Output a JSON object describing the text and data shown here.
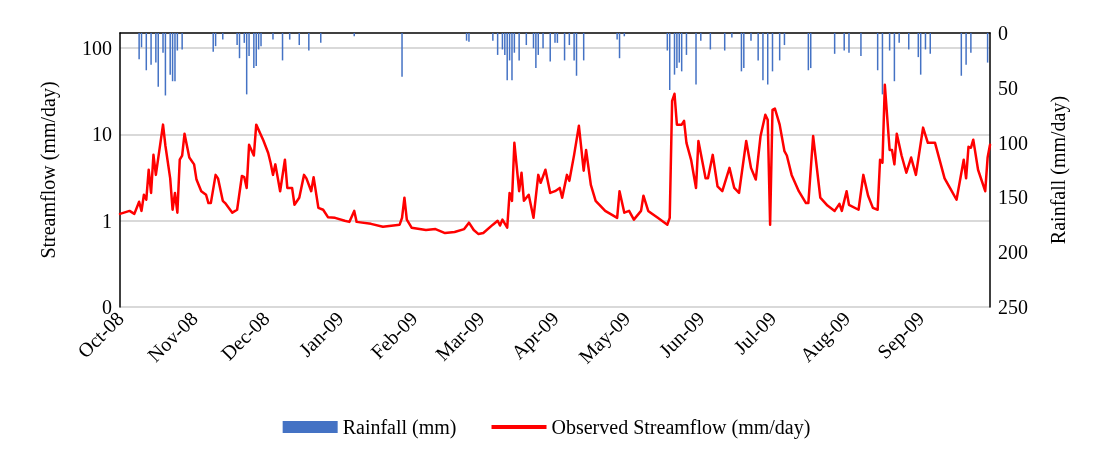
{
  "chart_data": {
    "type": "line",
    "xlim": [
      "2008-10-01",
      "2009-09-30"
    ],
    "xticks": [
      {
        "value": "2008-10-01",
        "label": "Oct-08"
      },
      {
        "value": "2008-11-01",
        "label": "Nov-08"
      },
      {
        "value": "2008-12-01",
        "label": "Dec-08"
      },
      {
        "value": "2009-01-01",
        "label": "Jan-09"
      },
      {
        "value": "2009-02-01",
        "label": "Feb-09"
      },
      {
        "value": "2009-03-01",
        "label": "Mar-09"
      },
      {
        "value": "2009-04-01",
        "label": "Apr-09"
      },
      {
        "value": "2009-05-01",
        "label": "May-09"
      },
      {
        "value": "2009-06-01",
        "label": "Jun-09"
      },
      {
        "value": "2009-07-01",
        "label": "Jul-09"
      },
      {
        "value": "2009-08-01",
        "label": "Aug-09"
      },
      {
        "value": "2009-09-01",
        "label": "Sep-09"
      }
    ],
    "ylabel": "Streamflow (mm/day)",
    "y2label": "Rainfall (mm/day)",
    "log": "y",
    "ylim": [
      0.1,
      150
    ],
    "yticks": [
      {
        "value": 0.1,
        "label": "0"
      },
      1,
      10,
      100
    ],
    "y2lim": [
      250,
      0
    ],
    "y2ticks": [
      0,
      50,
      100,
      150,
      200,
      250
    ],
    "grid": "y",
    "legend": "bottom",
    "marker": "none",
    "series": [
      {
        "name": "Rainfall (mm)",
        "type": "bar",
        "axis": "y2",
        "color": "#4472c4",
        "x": [
          "2008-10-09",
          "2008-10-10",
          "2008-10-12",
          "2008-10-14",
          "2008-10-16",
          "2008-10-17",
          "2008-10-19",
          "2008-10-20",
          "2008-10-22",
          "2008-10-23",
          "2008-10-24",
          "2008-10-25",
          "2008-10-27",
          "2008-11-09",
          "2008-11-10",
          "2008-11-13",
          "2008-11-19",
          "2008-11-20",
          "2008-11-22",
          "2008-11-23",
          "2008-11-24",
          "2008-11-26",
          "2008-11-27",
          "2008-11-28",
          "2008-11-29",
          "2008-12-04",
          "2008-12-08",
          "2008-12-11",
          "2008-12-15",
          "2008-12-19",
          "2008-12-24",
          "2009-01-07",
          "2009-01-27",
          "2009-02-23",
          "2009-02-24",
          "2009-03-06",
          "2009-03-08",
          "2009-03-10",
          "2009-03-11",
          "2009-03-12",
          "2009-03-13",
          "2009-03-14",
          "2009-03-15",
          "2009-03-17",
          "2009-03-20",
          "2009-03-23",
          "2009-03-24",
          "2009-03-25",
          "2009-03-27",
          "2009-03-30",
          "2009-04-01",
          "2009-04-02",
          "2009-04-05",
          "2009-04-07",
          "2009-04-09",
          "2009-04-10",
          "2009-04-13",
          "2009-04-27",
          "2009-04-28",
          "2009-04-30",
          "2009-05-18",
          "2009-05-19",
          "2009-05-21",
          "2009-05-22",
          "2009-05-23",
          "2009-05-24",
          "2009-05-26",
          "2009-05-30",
          "2009-06-01",
          "2009-06-05",
          "2009-06-11",
          "2009-06-14",
          "2009-06-18",
          "2009-06-19",
          "2009-06-22",
          "2009-06-25",
          "2009-06-27",
          "2009-06-29",
          "2009-07-01",
          "2009-07-04",
          "2009-07-06",
          "2009-07-16",
          "2009-07-17",
          "2009-07-27",
          "2009-07-31",
          "2009-08-02",
          "2009-08-07",
          "2009-08-14",
          "2009-08-16",
          "2009-08-19",
          "2009-08-21",
          "2009-08-23",
          "2009-08-27",
          "2009-08-31",
          "2009-09-01",
          "2009-09-03",
          "2009-09-05",
          "2009-09-18",
          "2009-09-20",
          "2009-09-22",
          "2009-09-29"
        ],
        "values": [
          24,
          13,
          34,
          29,
          27,
          49,
          18,
          57,
          38,
          44,
          44,
          16,
          15,
          17,
          12,
          6,
          11,
          23,
          9,
          56,
          21,
          32,
          30,
          15,
          12,
          6,
          25,
          6,
          11,
          16,
          9,
          3,
          40,
          7,
          8,
          7,
          20,
          15,
          20,
          43,
          25,
          43,
          18,
          25,
          11,
          14,
          32,
          20,
          14,
          26,
          9,
          9,
          25,
          11,
          25,
          39,
          25,
          6,
          23,
          3,
          16,
          52,
          38,
          32,
          27,
          35,
          20,
          47,
          7,
          15,
          16,
          4,
          35,
          32,
          7,
          25,
          43,
          47,
          35,
          25,
          11,
          34,
          32,
          19,
          16,
          18,
          21,
          34,
          56,
          16,
          44,
          9,
          15,
          22,
          38,
          15,
          19,
          39,
          29,
          18,
          27
        ]
      },
      {
        "name": "Observed Streamflow (mm/day)",
        "color": "#ff0000",
        "x": [
          "2008-10-01",
          "2008-10-05",
          "2008-10-07",
          "2008-10-09",
          "2008-10-10",
          "2008-10-11",
          "2008-10-12",
          "2008-10-13",
          "2008-10-14",
          "2008-10-15",
          "2008-10-16",
          "2008-10-19",
          "2008-10-20",
          "2008-10-22",
          "2008-10-23",
          "2008-10-24",
          "2008-10-25",
          "2008-10-26",
          "2008-10-27",
          "2008-10-28",
          "2008-10-30",
          "2008-11-01",
          "2008-11-02",
          "2008-11-04",
          "2008-11-06",
          "2008-11-07",
          "2008-11-08",
          "2008-11-10",
          "2008-11-11",
          "2008-11-13",
          "2008-11-14",
          "2008-11-17",
          "2008-11-19",
          "2008-11-21",
          "2008-11-22",
          "2008-11-23",
          "2008-11-24",
          "2008-11-26",
          "2008-11-27",
          "2008-11-30",
          "2008-12-02",
          "2008-12-03",
          "2008-12-04",
          "2008-12-05",
          "2008-12-07",
          "2008-12-09",
          "2008-12-10",
          "2008-12-12",
          "2008-12-13",
          "2008-12-15",
          "2008-12-17",
          "2008-12-18",
          "2008-12-20",
          "2008-12-21",
          "2008-12-23",
          "2008-12-25",
          "2008-12-27",
          "2008-12-30",
          "2009-01-03",
          "2009-01-05",
          "2009-01-07",
          "2009-01-08",
          "2009-01-14",
          "2009-01-19",
          "2009-01-26",
          "2009-01-27",
          "2009-01-28",
          "2009-01-29",
          "2009-01-31",
          "2009-02-06",
          "2009-02-10",
          "2009-02-14",
          "2009-02-18",
          "2009-02-22",
          "2009-02-24",
          "2009-02-26",
          "2009-02-28",
          "2009-03-02",
          "2009-03-06",
          "2009-03-08",
          "2009-03-09",
          "2009-03-10",
          "2009-03-12",
          "2009-03-13",
          "2009-03-14",
          "2009-03-15",
          "2009-03-17",
          "2009-03-18",
          "2009-03-19",
          "2009-03-21",
          "2009-03-23",
          "2009-03-25",
          "2009-03-26",
          "2009-03-28",
          "2009-03-30",
          "2009-04-01",
          "2009-04-03",
          "2009-04-04",
          "2009-04-06",
          "2009-04-07",
          "2009-04-09",
          "2009-04-11",
          "2009-04-13",
          "2009-04-14",
          "2009-04-16",
          "2009-04-18",
          "2009-04-22",
          "2009-04-27",
          "2009-04-28",
          "2009-04-30",
          "2009-05-02",
          "2009-05-04",
          "2009-05-07",
          "2009-05-08",
          "2009-05-10",
          "2009-05-11",
          "2009-05-14",
          "2009-05-18",
          "2009-05-19",
          "2009-05-20",
          "2009-05-21",
          "2009-05-22",
          "2009-05-24",
          "2009-05-25",
          "2009-05-26",
          "2009-05-28",
          "2009-05-30",
          "2009-05-31",
          "2009-06-03",
          "2009-06-04",
          "2009-06-06",
          "2009-06-08",
          "2009-06-10",
          "2009-06-13",
          "2009-06-15",
          "2009-06-17",
          "2009-06-20",
          "2009-06-22",
          "2009-06-24",
          "2009-06-26",
          "2009-06-28",
          "2009-06-29",
          "2009-06-30",
          "2009-07-01",
          "2009-07-02",
          "2009-07-04",
          "2009-07-06",
          "2009-07-07",
          "2009-07-09",
          "2009-07-12",
          "2009-07-15",
          "2009-07-16",
          "2009-07-18",
          "2009-07-21",
          "2009-07-24",
          "2009-07-27",
          "2009-07-29",
          "2009-07-30",
          "2009-08-01",
          "2009-08-02",
          "2009-08-06",
          "2009-08-08",
          "2009-08-10",
          "2009-08-12",
          "2009-08-14",
          "2009-08-15",
          "2009-08-16",
          "2009-08-17",
          "2009-08-19",
          "2009-08-20",
          "2009-08-21",
          "2009-08-22",
          "2009-08-24",
          "2009-08-26",
          "2009-08-28",
          "2009-08-30",
          "2009-09-02",
          "2009-09-04",
          "2009-09-07",
          "2009-09-11",
          "2009-09-14",
          "2009-09-16",
          "2009-09-19",
          "2009-09-20",
          "2009-09-21",
          "2009-09-22",
          "2009-09-23",
          "2009-09-25",
          "2009-09-28",
          "2009-09-29",
          "2009-09-30"
        ],
        "values": [
          1.2,
          1.3,
          1.2,
          1.66,
          1.3,
          2.0,
          1.75,
          3.9,
          2.1,
          5.8,
          3.4,
          13,
          7.4,
          3.1,
          1.34,
          2.1,
          1.24,
          5.1,
          5.7,
          10.2,
          5.4,
          4.5,
          3.0,
          2.2,
          2.0,
          1.6,
          1.6,
          3.4,
          3.1,
          1.7,
          1.6,
          1.24,
          1.34,
          3.3,
          3.2,
          2.4,
          7.6,
          5.7,
          13,
          8.5,
          6.1,
          4.7,
          3.4,
          4.5,
          2.2,
          5.1,
          2.4,
          2.4,
          1.53,
          1.85,
          3.4,
          3.1,
          2.2,
          3.2,
          1.41,
          1.34,
          1.1,
          1.08,
          1.0,
          0.97,
          1.3,
          0.97,
          0.92,
          0.85,
          0.9,
          1.08,
          1.85,
          1.03,
          0.83,
          0.78,
          0.8,
          0.72,
          0.74,
          0.8,
          0.95,
          0.78,
          0.7,
          0.72,
          0.9,
          1.0,
          0.88,
          1.03,
          0.83,
          2.1,
          1.7,
          8.0,
          2.2,
          3.6,
          1.7,
          2.0,
          1.08,
          3.4,
          2.75,
          3.9,
          2.1,
          2.2,
          2.4,
          1.85,
          3.4,
          2.9,
          5.8,
          12.6,
          3.8,
          6.6,
          2.6,
          1.7,
          1.3,
          1.08,
          2.2,
          1.24,
          1.3,
          1.03,
          1.3,
          1.95,
          1.3,
          1.24,
          1.08,
          0.9,
          1.08,
          24.5,
          29.6,
          13,
          13,
          14.4,
          8,
          5.0,
          2.4,
          8.4,
          3.1,
          3.1,
          5.8,
          2.5,
          2.2,
          4.1,
          2.4,
          2.1,
          8.4,
          4.1,
          3.0,
          9.6,
          16.9,
          14.8,
          0.9,
          19.3,
          20,
          13,
          6.4,
          5.7,
          3.4,
          2.2,
          1.6,
          1.6,
          9.6,
          1.85,
          1.5,
          1.3,
          1.57,
          1.3,
          2.2,
          1.53,
          1.34,
          3.4,
          1.95,
          1.41,
          1.34,
          5.1,
          4.7,
          37.6,
          6.6,
          6.6,
          4.5,
          10.2,
          5.7,
          3.6,
          5.4,
          3.4,
          12,
          8.0,
          8.0,
          3.1,
          2.2,
          1.75,
          5.1,
          3.1,
          7.2,
          7.0,
          8.7,
          3.9,
          2.2,
          5.4,
          7.6
        ]
      }
    ]
  }
}
